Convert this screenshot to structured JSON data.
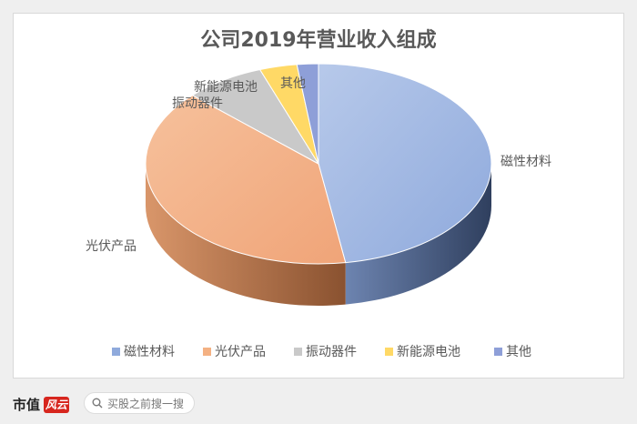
{
  "chart_data": {
    "type": "pie",
    "title": "公司2019年营业收入组成",
    "categories": [
      "磁性材料",
      "光伏产品",
      "振动器件",
      "新能源电池",
      "其他"
    ],
    "values": [
      47.5,
      39.5,
      7.5,
      3.5,
      2.0
    ],
    "unit": "%",
    "colors": [
      "#8faadc",
      "#f4b183",
      "#c9c9c9",
      "#ffd966",
      "#8e9fd8"
    ],
    "legend_position": "bottom",
    "style": "3d"
  },
  "footer": {
    "brand": "市值",
    "brand_mark": "风云",
    "search_placeholder": "买股之前搜一搜",
    "search_icon": "search-icon"
  }
}
